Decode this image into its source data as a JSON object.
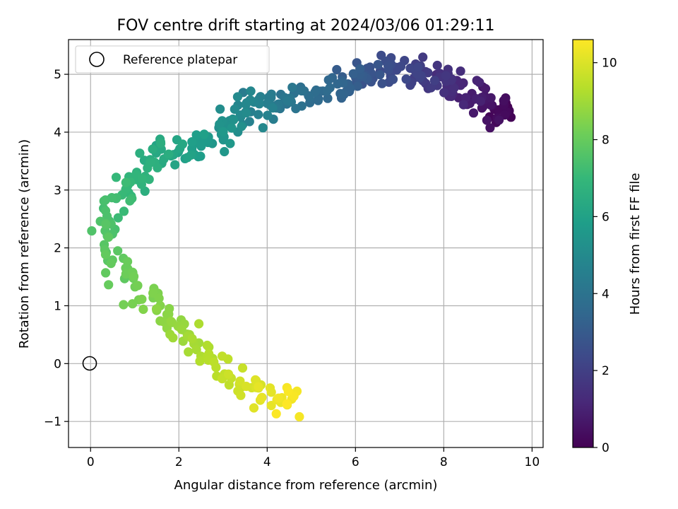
{
  "chart_data": {
    "type": "scatter",
    "title": "FOV centre drift starting at 2024/03/06 01:29:11",
    "xlabel": "Angular distance from reference (arcmin)",
    "ylabel": "Rotation from reference (arcmin)",
    "xlim": [
      -0.5,
      10.25
    ],
    "ylim": [
      -1.45,
      5.6
    ],
    "xticks": [
      0,
      2,
      4,
      6,
      8,
      10
    ],
    "yticks": [
      -1,
      0,
      1,
      2,
      3,
      4,
      5
    ],
    "grid": true,
    "legend": {
      "placement": "upper-left",
      "entries": [
        "Reference platepar"
      ]
    },
    "colorbar": {
      "label": "Hours from first FF file",
      "range": [
        0,
        10.6
      ],
      "ticks": [
        0,
        2,
        4,
        6,
        8,
        10
      ],
      "colormap": "viridis"
    },
    "reference_point": {
      "x": 0,
      "y": 0,
      "label": "Reference platepar"
    },
    "path_keypoints": [
      {
        "x": 9.5,
        "y": 4.3,
        "hours": 0.0
      },
      {
        "x": 8.8,
        "y": 4.55,
        "hours": 0.8
      },
      {
        "x": 8.0,
        "y": 4.9,
        "hours": 1.5
      },
      {
        "x": 7.2,
        "y": 5.0,
        "hours": 2.2
      },
      {
        "x": 6.3,
        "y": 5.05,
        "hours": 2.8
      },
      {
        "x": 5.6,
        "y": 4.8,
        "hours": 3.4
      },
      {
        "x": 5.0,
        "y": 4.65,
        "hours": 3.8
      },
      {
        "x": 4.2,
        "y": 4.55,
        "hours": 4.3
      },
      {
        "x": 3.6,
        "y": 4.45,
        "hours": 4.8
      },
      {
        "x": 3.1,
        "y": 4.15,
        "hours": 5.3
      },
      {
        "x": 2.5,
        "y": 3.7,
        "hours": 5.8
      },
      {
        "x": 1.8,
        "y": 3.75,
        "hours": 6.3
      },
      {
        "x": 1.2,
        "y": 3.3,
        "hours": 6.8
      },
      {
        "x": 0.7,
        "y": 2.9,
        "hours": 7.2
      },
      {
        "x": 0.3,
        "y": 2.4,
        "hours": 7.6
      },
      {
        "x": 0.3,
        "y": 1.9,
        "hours": 7.9
      },
      {
        "x": 0.9,
        "y": 1.4,
        "hours": 8.2
      },
      {
        "x": 1.5,
        "y": 1.0,
        "hours": 8.6
      },
      {
        "x": 2.1,
        "y": 0.55,
        "hours": 9.0
      },
      {
        "x": 2.7,
        "y": 0.1,
        "hours": 9.4
      },
      {
        "x": 3.3,
        "y": -0.4,
        "hours": 9.8
      },
      {
        "x": 4.0,
        "y": -0.6,
        "hours": 10.2
      },
      {
        "x": 4.7,
        "y": -0.75,
        "hours": 10.6
      }
    ],
    "point_count": 420
  },
  "colors": {
    "reference_marker": "#000000",
    "grid": "#b0b0b0",
    "viridis": [
      "#440154",
      "#482878",
      "#3e4989",
      "#31688e",
      "#26828e",
      "#1f9e89",
      "#35b779",
      "#6ece58",
      "#b5de2b",
      "#fde725"
    ]
  }
}
